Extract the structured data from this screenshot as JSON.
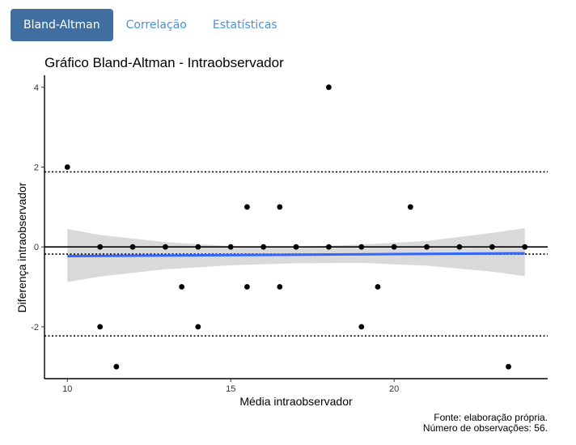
{
  "tabs": [
    {
      "label": "Bland-Altman",
      "active": true
    },
    {
      "label": "Correlação",
      "active": false
    },
    {
      "label": "Estatísticas",
      "active": false
    }
  ],
  "colors": {
    "tab_active_bg": "#3f6fa1",
    "tab_link": "#4a90d9",
    "trend_line": "#3366ff",
    "confidence_band": "#d9d9d9",
    "points": "#000000"
  },
  "chart_data": {
    "type": "scatter",
    "title": "Gráfico Bland-Altman - Intraobservador",
    "xlabel": "Média intraobservador",
    "ylabel": "Diferença intraobservador",
    "xlim": [
      9.3,
      24.7
    ],
    "ylim": [
      -3.3,
      4.3
    ],
    "xticks": [
      10,
      15,
      20
    ],
    "yticks": [
      -2,
      0,
      2,
      4
    ],
    "grid": false,
    "points": [
      {
        "x": 10,
        "y": 2
      },
      {
        "x": 11,
        "y": 0
      },
      {
        "x": 11,
        "y": -2
      },
      {
        "x": 11.5,
        "y": -3
      },
      {
        "x": 12,
        "y": 0
      },
      {
        "x": 13,
        "y": 0
      },
      {
        "x": 13.5,
        "y": -1
      },
      {
        "x": 14,
        "y": 0
      },
      {
        "x": 14,
        "y": -2
      },
      {
        "x": 15,
        "y": 0
      },
      {
        "x": 15.5,
        "y": 1
      },
      {
        "x": 15.5,
        "y": -1
      },
      {
        "x": 16,
        "y": 0
      },
      {
        "x": 16.5,
        "y": 1
      },
      {
        "x": 16.5,
        "y": -1
      },
      {
        "x": 17,
        "y": 0
      },
      {
        "x": 18,
        "y": 4
      },
      {
        "x": 18,
        "y": 0
      },
      {
        "x": 19,
        "y": 0
      },
      {
        "x": 19,
        "y": -2
      },
      {
        "x": 19.5,
        "y": -1
      },
      {
        "x": 20,
        "y": 0
      },
      {
        "x": 20.5,
        "y": 1
      },
      {
        "x": 21,
        "y": 0
      },
      {
        "x": 22,
        "y": 0
      },
      {
        "x": 23,
        "y": 0
      },
      {
        "x": 23.5,
        "y": -3
      },
      {
        "x": 24,
        "y": 0
      }
    ],
    "reference_lines": {
      "zero": 0,
      "mean_difference": -0.18,
      "upper_limit": 1.88,
      "lower_limit": -2.23
    },
    "trend": {
      "x": [
        10,
        24
      ],
      "y": [
        -0.23,
        -0.16
      ],
      "band_x": [
        10,
        11,
        13,
        15,
        17,
        19,
        21,
        23,
        24
      ],
      "band_upper": [
        0.45,
        0.3,
        0.12,
        0.02,
        0.0,
        0.06,
        0.15,
        0.35,
        0.47
      ],
      "band_lower": [
        -0.88,
        -0.74,
        -0.56,
        -0.46,
        -0.41,
        -0.4,
        -0.47,
        -0.62,
        -0.73
      ]
    },
    "caption": [
      "Fonte: elaboração própria.",
      "Número de observações: 56."
    ]
  }
}
